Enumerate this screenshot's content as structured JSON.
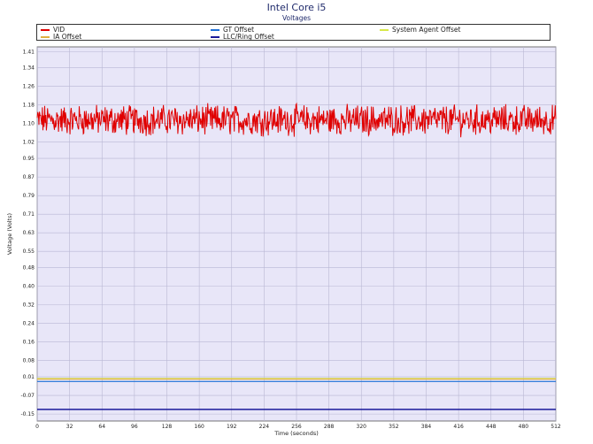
{
  "colors": {
    "plot_bg": "#e8e6f8",
    "grid": "#b9b7d4",
    "vid": "#e00000",
    "gt_offset": "#1d6fd6",
    "system_agent_offset": "#d8e84a",
    "ia_offset": "#e0b040",
    "llc_ring_offset": "#1a1a9a"
  },
  "chart_data": {
    "type": "line",
    "title": "Intel Core i5",
    "subtitle": "Voltages",
    "xlabel": "Time (seconds)",
    "ylabel": "Voltage (Volts)",
    "xlim": [
      0,
      512
    ],
    "ylim": [
      -0.18,
      1.43
    ],
    "x_ticks": [
      0,
      32,
      64,
      96,
      128,
      160,
      192,
      224,
      256,
      288,
      320,
      352,
      384,
      416,
      448,
      480,
      512
    ],
    "y_ticks": [
      1.41,
      1.34,
      1.26,
      1.18,
      1.1,
      1.02,
      0.95,
      0.87,
      0.79,
      0.71,
      0.63,
      0.55,
      0.48,
      0.4,
      0.32,
      0.24,
      0.16,
      0.08,
      0.01,
      -0.07,
      -0.15
    ],
    "y_tick_labels": [
      "1.41",
      "1.34",
      "1.26",
      "1.18",
      "1.10",
      "1.02",
      "0.95",
      "0.87",
      "0.79",
      "0.71",
      "0.63",
      "0.55",
      "0.48",
      "0.40",
      "0.32",
      "0.24",
      "0.16",
      "0.08",
      "0.01",
      "-0.07",
      "-0.15"
    ],
    "grid": true,
    "legend_position": "top",
    "series": [
      {
        "name": "VID",
        "color": "#e00000",
        "x": [
          0,
          512
        ],
        "y_mean": 1.115,
        "y_range": [
          1.03,
          1.19
        ],
        "style": "noisy"
      },
      {
        "name": "GT Offset",
        "color": "#1d6fd6",
        "x": [
          0,
          512
        ],
        "y": [
          -0.01,
          -0.01
        ]
      },
      {
        "name": "System Agent Offset",
        "color": "#d8e84a",
        "x": [
          0,
          512
        ],
        "y": [
          0.003,
          0.003
        ]
      },
      {
        "name": "IA Offset",
        "color": "#e0b040",
        "x": [
          0,
          512
        ],
        "y": [
          0.0,
          0.0
        ]
      },
      {
        "name": "LLC/Ring Offset",
        "color": "#1a1a9a",
        "x": [
          0,
          512
        ],
        "y": [
          -0.13,
          -0.13
        ]
      }
    ]
  }
}
